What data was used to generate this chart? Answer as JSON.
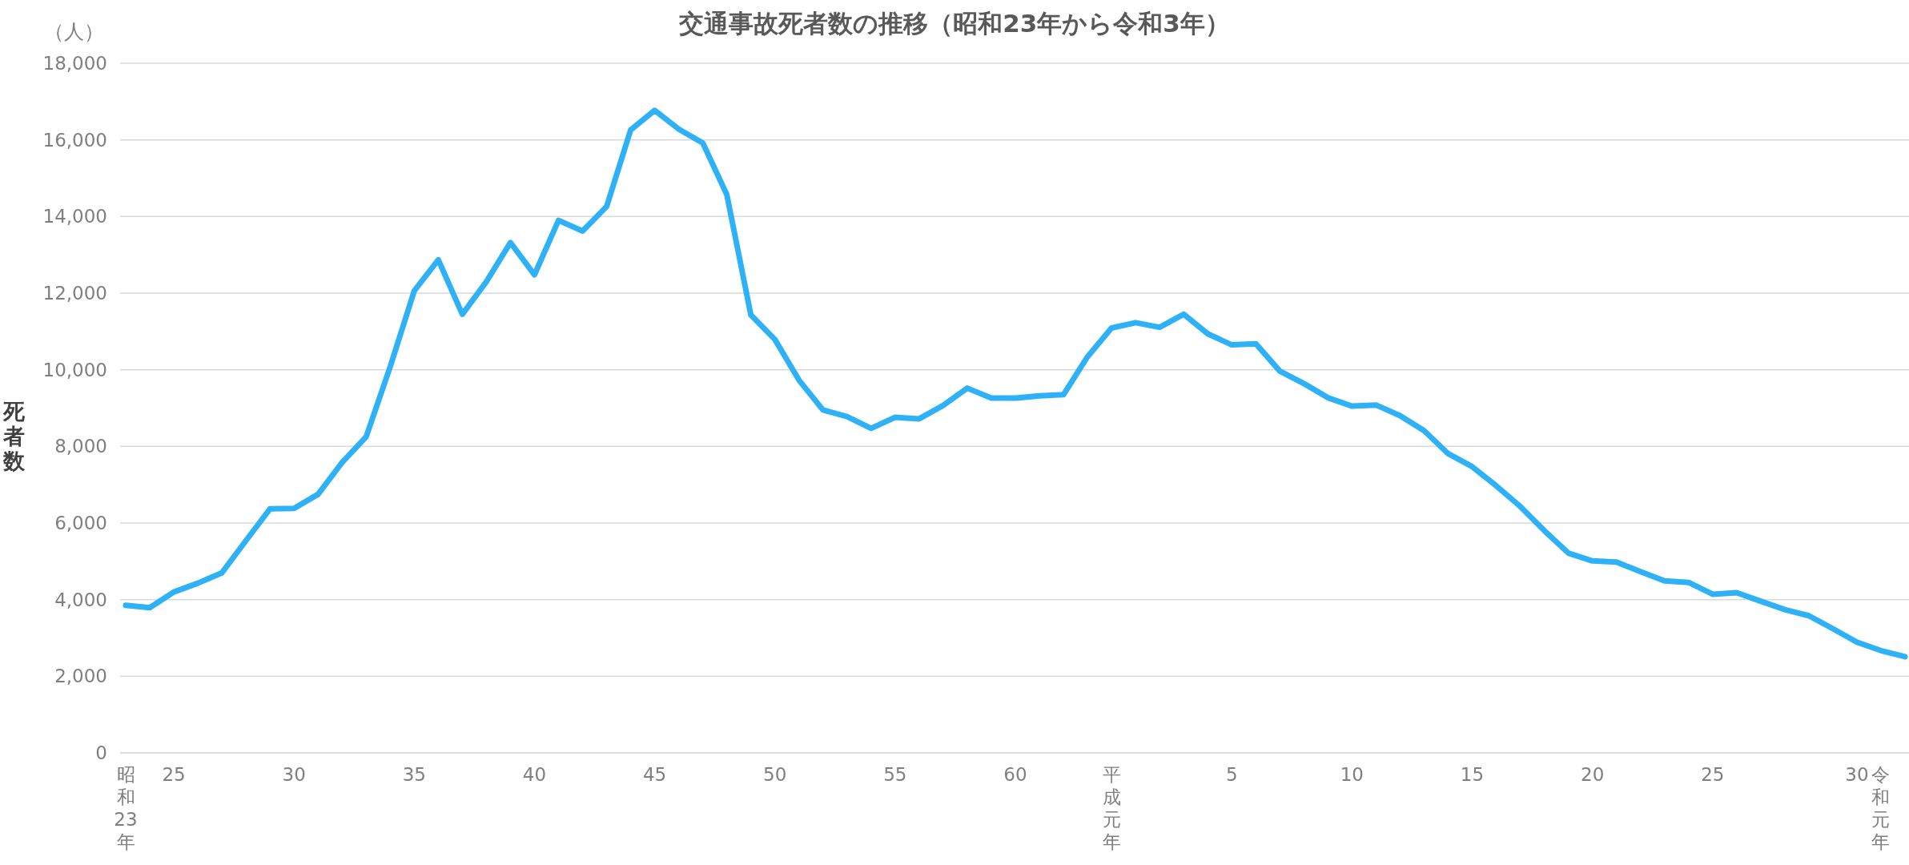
{
  "chart_data": {
    "type": "line",
    "title": "交通事故死者数の推移（昭和23年から令和3年）",
    "ylabel": "死者数",
    "annotations": [
      "（人）"
    ],
    "categories": [
      "昭和23年",
      null,
      "25",
      null,
      null,
      null,
      null,
      "30",
      null,
      null,
      null,
      null,
      "35",
      null,
      null,
      null,
      null,
      "40",
      null,
      null,
      null,
      null,
      "45",
      null,
      null,
      null,
      null,
      "50",
      null,
      null,
      null,
      null,
      "55",
      null,
      null,
      null,
      null,
      "60",
      null,
      null,
      null,
      "平成元年",
      null,
      null,
      null,
      null,
      "5",
      null,
      null,
      null,
      null,
      "10",
      null,
      null,
      null,
      null,
      "15",
      null,
      null,
      null,
      null,
      "20",
      null,
      null,
      null,
      null,
      "25",
      null,
      null,
      null,
      null,
      null,
      "30",
      "令和元年",
      null
    ],
    "series": [
      {
        "color": "#2eb1f7",
        "values": [
          3850,
          3790,
          4200,
          4430,
          4700,
          5540,
          6370,
          6380,
          6750,
          7580,
          8250,
          10080,
          12060,
          12870,
          11450,
          12300,
          13320,
          12480,
          13900,
          13620,
          14260,
          16260,
          16770,
          16280,
          15920,
          14570,
          11430,
          10790,
          9730,
          8950,
          8780,
          8470,
          8760,
          8720,
          9070,
          9520,
          9260,
          9260,
          9320,
          9350,
          10340,
          11090,
          11230,
          11110,
          11450,
          10940,
          10650,
          10680,
          9965,
          9640,
          9270,
          9050,
          9080,
          8800,
          8410,
          7810,
          7470,
          6970,
          6430,
          5800,
          5215,
          5010,
          4980,
          4730,
          4490,
          4450,
          4140,
          4180,
          3960,
          3740,
          3580,
          3240,
          2890,
          2670,
          2510
        ]
      }
    ],
    "ylim": [
      0,
      18000
    ],
    "yticks": [
      0,
      {
        "value": 2000,
        "label": "2,000"
      },
      {
        "value": 4000,
        "label": "4,000"
      },
      {
        "value": 6000,
        "label": "6,000"
      },
      {
        "value": 8000,
        "label": "8,000"
      },
      {
        "value": 10000,
        "label": "10,000"
      },
      {
        "value": 12000,
        "label": "12,000"
      },
      {
        "value": 14000,
        "label": "14,000"
      },
      {
        "value": 16000,
        "label": "16,000"
      },
      {
        "value": 18000,
        "label": "18,000"
      }
    ],
    "grid": "y",
    "marker": "none",
    "line_style": "solid"
  }
}
